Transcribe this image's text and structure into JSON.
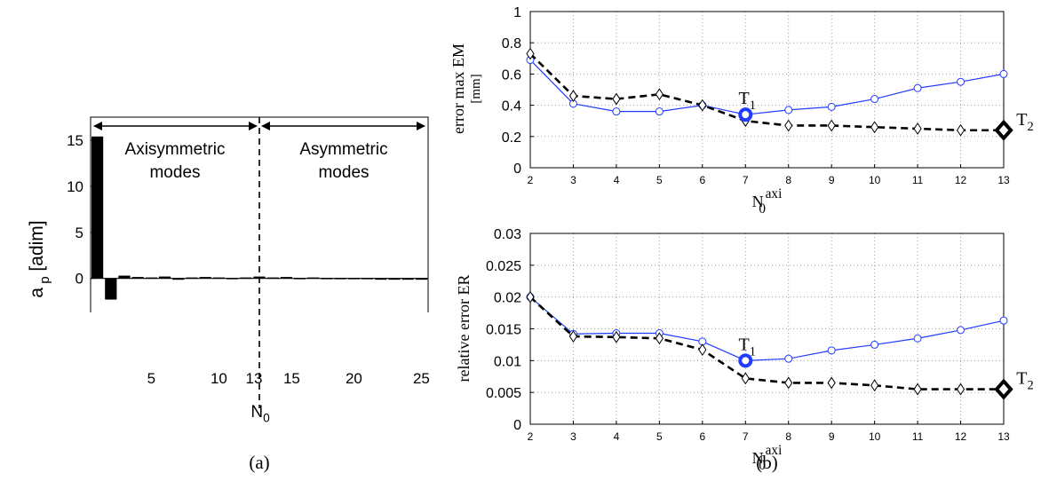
{
  "colors": {
    "blue": "#1f3cff",
    "black": "#000000",
    "grid": "#9a9a9a"
  },
  "chart_data": [
    {
      "panel": "(a)",
      "type": "bar",
      "xlabel": "N",
      "xlabel_sub": "0",
      "ylabel": "a",
      "ylabel_sub": "p",
      "ylabel_unit": "[adim]",
      "x": [
        1,
        2,
        3,
        4,
        5,
        6,
        7,
        8,
        9,
        10,
        11,
        12,
        13,
        14,
        15,
        16,
        17,
        18,
        19,
        20,
        21,
        22,
        23,
        24,
        25
      ],
      "values": [
        15.4,
        -2.3,
        0.3,
        0.15,
        0.1,
        0.2,
        -0.15,
        0.1,
        0.15,
        0.1,
        0.05,
        0.1,
        0.2,
        0.1,
        0.15,
        0.05,
        0.1,
        0.05,
        0.05,
        0.05,
        0.05,
        0.0,
        0.0,
        0.0,
        0.0
      ],
      "xlim": [
        0.5,
        25.5
      ],
      "ylim": [
        -3.5,
        17.5
      ],
      "xticks": [
        "5",
        "10",
        "13",
        "15",
        "20",
        "25"
      ],
      "xtick_values": [
        5,
        10,
        13,
        15,
        20,
        25
      ],
      "yticks": [
        "0",
        "5",
        "10",
        "15"
      ],
      "ytick_values": [
        0,
        5,
        10,
        15
      ],
      "divider_x": 13,
      "regions": [
        {
          "line1": "Axisymmetric",
          "line2": "modes"
        },
        {
          "line1": "Asymmetric",
          "line2": "modes"
        }
      ],
      "caption": "(a)"
    },
    {
      "panel": "(b) top",
      "type": "line",
      "x": [
        2,
        3,
        4,
        5,
        6,
        7,
        8,
        9,
        10,
        11,
        12,
        13
      ],
      "xlabel": "N",
      "xlabel_sub": "0",
      "xlabel_sup": "axi",
      "ylabel": "error max EM",
      "ylabel_unit": "[mm]",
      "xlim": [
        2,
        13
      ],
      "ylim": [
        0,
        1
      ],
      "xticks": [
        "2",
        "3",
        "4",
        "5",
        "6",
        "7",
        "8",
        "9",
        "10",
        "11",
        "12",
        "13"
      ],
      "yticks": [
        "0",
        "0.2",
        "0.4",
        "0.6",
        "0.8",
        "1"
      ],
      "ytick_values": [
        0,
        0.2,
        0.4,
        0.6,
        0.8,
        1
      ],
      "grid": true,
      "series": [
        {
          "values": [
            0.69,
            0.41,
            0.36,
            0.36,
            0.4,
            0.34,
            0.37,
            0.39,
            0.44,
            0.51,
            0.55,
            0.6
          ],
          "color": "#1f3cff",
          "style": "solid",
          "marker": "circle"
        },
        {
          "values": [
            0.73,
            0.46,
            0.44,
            0.47,
            0.4,
            0.3,
            0.27,
            0.27,
            0.26,
            0.25,
            0.24,
            0.24
          ],
          "color": "#000000",
          "style": "dashed",
          "marker": "diamond"
        }
      ],
      "annotations": [
        {
          "label": "T",
          "sub": "1",
          "x": 7,
          "y": 0.34,
          "series": 0
        },
        {
          "label": "T",
          "sub": "2",
          "x": 13,
          "y": 0.24,
          "series": 1
        }
      ]
    },
    {
      "panel": "(b) bottom",
      "type": "line",
      "x": [
        2,
        3,
        4,
        5,
        6,
        7,
        8,
        9,
        10,
        11,
        12,
        13
      ],
      "xlabel": "N",
      "xlabel_sub": "0",
      "xlabel_sup": "axi",
      "ylabel": "relative error ER",
      "xlim": [
        2,
        13
      ],
      "ylim": [
        0,
        0.03
      ],
      "xticks": [
        "2",
        "3",
        "4",
        "5",
        "6",
        "7",
        "8",
        "9",
        "10",
        "11",
        "12",
        "13"
      ],
      "yticks": [
        "0",
        "0.005",
        "0.01",
        "0.015",
        "0.02",
        "0.025",
        "0.03"
      ],
      "ytick_values": [
        0,
        0.005,
        0.01,
        0.015,
        0.02,
        0.025,
        0.03
      ],
      "grid": true,
      "series": [
        {
          "values": [
            0.02,
            0.0142,
            0.0143,
            0.0143,
            0.013,
            0.01,
            0.0103,
            0.0116,
            0.0125,
            0.0135,
            0.0148,
            0.0163
          ],
          "color": "#1f3cff",
          "style": "solid",
          "marker": "circle"
        },
        {
          "values": [
            0.02,
            0.0138,
            0.0137,
            0.0135,
            0.0117,
            0.0072,
            0.0065,
            0.0065,
            0.0061,
            0.0055,
            0.0055,
            0.0055
          ],
          "color": "#000000",
          "style": "dashed",
          "marker": "diamond"
        }
      ],
      "annotations": [
        {
          "label": "T",
          "sub": "1",
          "x": 7,
          "y": 0.01,
          "series": 0
        },
        {
          "label": "T",
          "sub": "2",
          "x": 13,
          "y": 0.0055,
          "series": 1
        }
      ],
      "caption": "(b)"
    }
  ]
}
